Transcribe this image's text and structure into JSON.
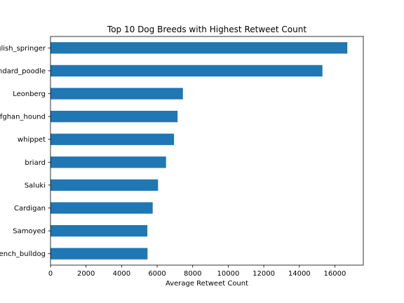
{
  "chart_data": {
    "type": "bar",
    "orientation": "horizontal",
    "title": "Top 10 Dog Breeds with Highest Retweet Count",
    "xlabel": "Average Retweet Count",
    "ylabel": "",
    "xlim": [
      0,
      17600
    ],
    "x_ticks": [
      0,
      2000,
      4000,
      6000,
      8000,
      10000,
      12000,
      14000,
      16000
    ],
    "grid": false,
    "legend": "none",
    "bar_color": "#1f77b4",
    "categories": [
      "French_bulldog",
      "Samoyed",
      "Cardigan",
      "Saluki",
      "briard",
      "whippet",
      "Afghan_hound",
      "Leonberg",
      "standard_poodle",
      "English_springer"
    ],
    "values": [
      5460,
      5450,
      5750,
      6050,
      6500,
      6950,
      7150,
      7450,
      15300,
      16700
    ]
  }
}
